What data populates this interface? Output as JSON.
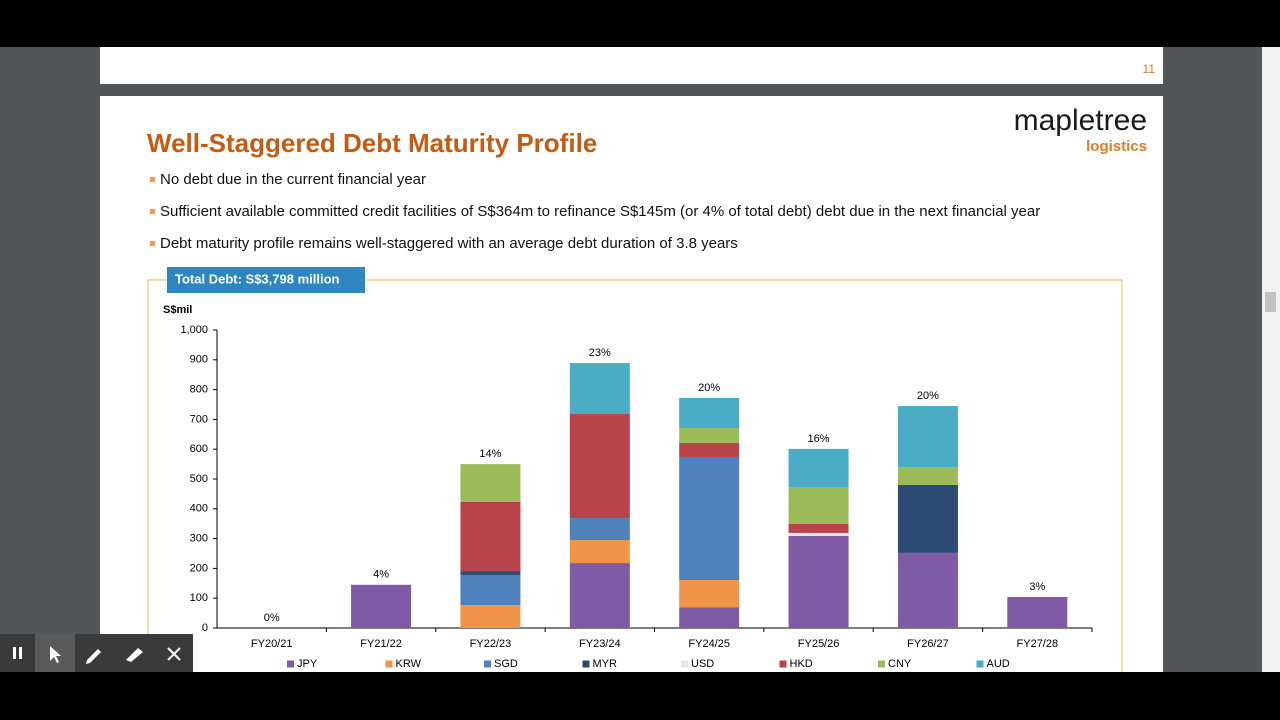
{
  "viewer": {
    "previous_page_number": "11"
  },
  "slide": {
    "title": "Well-Staggered Debt Maturity Profile",
    "logo": {
      "name": "mapletree",
      "division": "logistics"
    },
    "bullets": [
      "No debt due in the current financial year",
      "Sufficient available committed credit facilities of S$364m to refinance S$145m (or 4% of total debt) debt due in the next financial year",
      "Debt maturity profile remains well-staggered with an average debt duration of 3.8 years"
    ],
    "banner": "Total Debt: S$3,798 million"
  },
  "chart_data": {
    "type": "stacked_bar",
    "ylabel": "S$mil",
    "categories": [
      "FY20/21",
      "FY21/22",
      "FY22/23",
      "FY23/24",
      "FY24/25",
      "FY25/26",
      "FY26/27",
      "FY27/28"
    ],
    "series": [
      {
        "name": "JPY",
        "color": "#7f5ba6",
        "values": [
          0,
          145,
          0,
          218,
          70,
          309,
          252,
          104
        ]
      },
      {
        "name": "KRW",
        "color": "#f0944a",
        "values": [
          0,
          0,
          77,
          77,
          91,
          0,
          0,
          0
        ]
      },
      {
        "name": "SGD",
        "color": "#4f81bd",
        "values": [
          0,
          0,
          101,
          74,
          413,
          0,
          0,
          0
        ]
      },
      {
        "name": "MYR",
        "color": "#2c4a74",
        "values": [
          0,
          0,
          13,
          0,
          0,
          0,
          228,
          0
        ]
      },
      {
        "name": "USD",
        "color": "#e6e6e6",
        "values": [
          0,
          0,
          0,
          0,
          0,
          10,
          0,
          0
        ]
      },
      {
        "name": "HKD",
        "color": "#b8434b",
        "values": [
          0,
          0,
          232,
          349,
          47,
          30,
          0,
          0
        ]
      },
      {
        "name": "CNY",
        "color": "#9bbb59",
        "values": [
          0,
          0,
          127,
          0,
          50,
          124,
          60,
          0
        ]
      },
      {
        "name": "AUD",
        "color": "#4bacc6",
        "values": [
          0,
          0,
          0,
          171,
          101,
          128,
          205,
          0
        ]
      }
    ],
    "share_labels": [
      "0%",
      "4%",
      "14%",
      "23%",
      "20%",
      "16%",
      "20%",
      "3%"
    ],
    "ylim": [
      0,
      1000
    ],
    "yticks": [
      0,
      100,
      200,
      300,
      400,
      500,
      600,
      700,
      800,
      900,
      {
        "value": 1000,
        "label": "1,000"
      }
    ],
    "legend": "bottom"
  }
}
